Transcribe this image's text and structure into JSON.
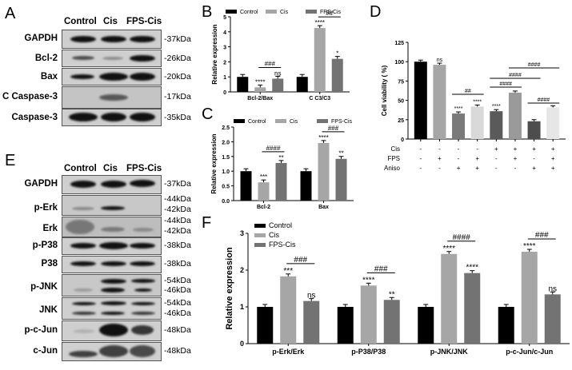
{
  "panels": {
    "A": {
      "letter": "A",
      "lanes": [
        "Control",
        "Cis",
        "FPS-Cis"
      ],
      "rows": [
        {
          "label": "GAPDH",
          "kda": [
            "-37kDa"
          ]
        },
        {
          "label": "Bcl-2",
          "kda": [
            "-26kDa"
          ]
        },
        {
          "label": "Bax",
          "kda": [
            "-20kDa"
          ]
        },
        {
          "label": "C Caspase-3",
          "kda": [
            "-17kDa"
          ]
        },
        {
          "label": "Caspase-3",
          "kda": [
            "-35kDa"
          ]
        }
      ]
    },
    "E": {
      "letter": "E",
      "lanes": [
        "Control",
        "Cis",
        "FPS-Cis"
      ],
      "rows": [
        {
          "label": "GAPDH",
          "kda": [
            "-37kDa"
          ]
        },
        {
          "label": "p-Erk",
          "kda": [
            "-44kDa",
            "-42kDa"
          ]
        },
        {
          "label": "Erk",
          "kda": [
            "-44kDa",
            "-42kDa"
          ]
        },
        {
          "label": "p-P38",
          "kda": [
            "-38kDa"
          ]
        },
        {
          "label": "P38",
          "kda": [
            "-38kDa"
          ]
        },
        {
          "label": "p-JNK",
          "kda": [
            "-54kDa",
            "-46kDa"
          ]
        },
        {
          "label": "JNK",
          "kda": [
            "-54kDa",
            "-46kDa"
          ]
        },
        {
          "label": "p-c-Jun",
          "kda": [
            "-48kDa"
          ]
        },
        {
          "label": "c-Jun",
          "kda": [
            "-48kDa"
          ]
        }
      ]
    },
    "B": {
      "letter": "B"
    },
    "C": {
      "letter": "C"
    },
    "D": {
      "letter": "D"
    },
    "F": {
      "letter": "F"
    }
  },
  "colors": {
    "control": "#000000",
    "cis": "#a6a6a6",
    "fps_cis": "#737373"
  },
  "chart_data": [
    {
      "panel": "B",
      "type": "bar",
      "title": "",
      "xlabel": "",
      "ylabel": "Relative expression",
      "ylim": [
        0,
        5
      ],
      "yticks": [
        0,
        1,
        2,
        3,
        4,
        5
      ],
      "legend": [
        "Control",
        "Cis",
        "FPS-Cis"
      ],
      "legend_position": "top",
      "categories": [
        "Bcl-2/Bax",
        "C C3/C3"
      ],
      "series": [
        {
          "name": "Control",
          "values": [
            1.0,
            1.0
          ]
        },
        {
          "name": "Cis",
          "values": [
            0.3,
            4.25
          ]
        },
        {
          "name": "FPS-Cis",
          "values": [
            0.88,
            2.2
          ]
        }
      ],
      "annotations": {
        "Bcl-2/Bax": {
          "Cis": "****",
          "FPS-Cis": "ns",
          "bracket": "###"
        },
        "C C3/C3": {
          "Cis": "****",
          "FPS-Cis": "*",
          "bracket": "##"
        }
      }
    },
    {
      "panel": "C",
      "type": "bar",
      "title": "",
      "xlabel": "",
      "ylabel": "Relative expression",
      "ylim": [
        0,
        2.5
      ],
      "yticks": [
        "0.0",
        "0.5",
        "1.0",
        "1.5",
        "2.0",
        "2.5"
      ],
      "legend": [
        "Control",
        "Cis",
        "FPS-Cis"
      ],
      "legend_position": "top",
      "categories": [
        "Bcl-2",
        "Bax"
      ],
      "series": [
        {
          "name": "Control",
          "values": [
            1.0,
            1.0
          ]
        },
        {
          "name": "Cis",
          "values": [
            0.62,
            1.96
          ]
        },
        {
          "name": "FPS-Cis",
          "values": [
            1.28,
            1.42
          ]
        }
      ],
      "annotations": {
        "Bcl-2": {
          "Cis": "***",
          "FPS-Cis": "**",
          "bracket": "####"
        },
        "Bax": {
          "Cis": "****",
          "FPS-Cis": "**",
          "bracket": "###"
        }
      }
    },
    {
      "panel": "D",
      "type": "bar",
      "title": "",
      "xlabel": "",
      "ylabel": "Cell viability ( %)",
      "ylim": [
        0,
        125
      ],
      "yticks": [
        0,
        25,
        50,
        75,
        100,
        125
      ],
      "conditions": {
        "Cis": [
          "-",
          "-",
          "-",
          "-",
          "+",
          "+",
          "+",
          "+"
        ],
        "FPS": [
          "-",
          "+",
          "-",
          "+",
          "-",
          "+",
          "-",
          "+"
        ],
        "Aniso": [
          "-",
          "-",
          "+",
          "+",
          "-",
          "-",
          "+",
          "+"
        ]
      },
      "values": [
        100,
        96,
        33,
        42,
        36,
        60,
        23,
        41
      ],
      "bar_colors": [
        "#000000",
        "#a6a6a6",
        "#7a7a7a",
        "#d9d9d9",
        "#5a5a5a",
        "#9a9a9a",
        "#4d4d4d",
        "#e6e6e6"
      ],
      "star_annotations": [
        "",
        "ns",
        "****",
        "****",
        "****",
        "",
        "",
        ""
      ],
      "brackets": [
        {
          "from": 3,
          "to": 4,
          "label": "##"
        },
        {
          "from": 5,
          "to": 6,
          "label": "####"
        },
        {
          "from": 5,
          "to": 7,
          "label": "####"
        },
        {
          "from": 6,
          "to": 8,
          "label": "####"
        },
        {
          "from": 7,
          "to": 8,
          "label": "####"
        }
      ]
    },
    {
      "panel": "F",
      "type": "bar",
      "title": "",
      "xlabel": "",
      "ylabel": "Relative expression",
      "ylim": [
        0,
        3
      ],
      "yticks": [
        0,
        1,
        2,
        3
      ],
      "legend": [
        "Control",
        "Cis",
        "FPS-Cis"
      ],
      "legend_position": "top-left",
      "categories": [
        "p-Erk/Erk",
        "p-P38/P38",
        "p-JNK/JNK",
        "p-c-Jun/c-Jun"
      ],
      "series": [
        {
          "name": "Control",
          "values": [
            1.0,
            1.0,
            1.0,
            1.0
          ]
        },
        {
          "name": "Cis",
          "values": [
            1.83,
            1.58,
            2.44,
            2.5
          ]
        },
        {
          "name": "FPS-Cis",
          "values": [
            1.16,
            1.19,
            1.92,
            1.34
          ]
        }
      ],
      "annotations": {
        "p-Erk/Erk": {
          "Cis": "***",
          "FPS-Cis": "ns",
          "bracket": "###"
        },
        "p-P38/P38": {
          "Cis": "****",
          "FPS-Cis": "**",
          "bracket": "###"
        },
        "p-JNK/JNK": {
          "Cis": "****",
          "FPS-Cis": "****",
          "bracket": "####"
        },
        "p-c-Jun/c-Jun": {
          "Cis": "****",
          "FPS-Cis": "ns",
          "bracket": "###"
        }
      }
    }
  ]
}
